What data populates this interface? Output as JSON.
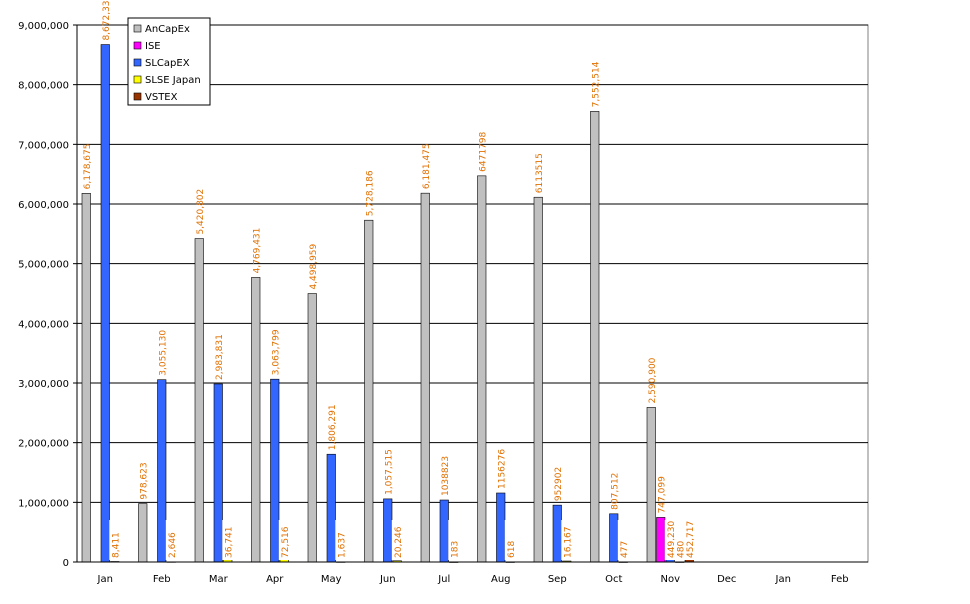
{
  "chart_data": {
    "type": "bar",
    "categories": [
      "Jan",
      "Feb",
      "Mar",
      "Apr",
      "May",
      "Jun",
      "Jul",
      "Aug",
      "Sep",
      "Oct",
      "Nov",
      "Dec",
      "Jan",
      "Feb"
    ],
    "ylim": [
      0,
      9000000
    ],
    "yticks": [
      {
        "value": 0,
        "label": "0"
      },
      {
        "value": 1000000,
        "label": "1,000,000"
      },
      {
        "value": 2000000,
        "label": "2,000,000"
      },
      {
        "value": 3000000,
        "label": "3,000,000"
      },
      {
        "value": 4000000,
        "label": "4,000,000"
      },
      {
        "value": 5000000,
        "label": "5,000,000"
      },
      {
        "value": 6000000,
        "label": "6,000,000"
      },
      {
        "value": 7000000,
        "label": "7,000,000"
      },
      {
        "value": 8000000,
        "label": "8,000,000"
      },
      {
        "value": 9000000,
        "label": "9,000,000"
      }
    ],
    "grid": true,
    "series": [
      {
        "name": "AnCapEx",
        "color": "#c0c0c0",
        "values": [
          6178675,
          978623,
          5420802,
          4769431,
          4498959,
          5728186,
          6181475,
          6471798,
          6113515,
          7552514,
          2590900,
          null,
          null,
          null
        ],
        "value_labels": [
          "6,178,675",
          "978,623",
          "5,420,802",
          "4,769,431",
          "4,498,959",
          "5,728,186",
          "6,181,475",
          "6471798",
          "6113515",
          "7,552,514",
          "2,590,900",
          null,
          null,
          null
        ]
      },
      {
        "name": "ISE",
        "color": "#ff00ff",
        "values": [
          null,
          null,
          null,
          null,
          null,
          null,
          null,
          null,
          null,
          null,
          747099,
          null,
          null,
          null
        ],
        "value_labels": [
          null,
          null,
          null,
          null,
          null,
          null,
          null,
          null,
          null,
          null,
          "747,099",
          null,
          null,
          null
        ]
      },
      {
        "name": "SLCapEX",
        "color": "#3366ff",
        "values": [
          8672335,
          3055130,
          2983831,
          3063799,
          1806291,
          1057515,
          1038823,
          1156276,
          952902,
          807512,
          449230,
          null,
          null,
          null
        ],
        "value_labels": [
          "8,672,335",
          "3,055,130",
          "2,983,831",
          "3,063,799",
          "1,806,291",
          "1,057,515",
          "1038823",
          "1156276",
          "952902",
          "807,512",
          "449,230",
          null,
          null,
          null
        ]
      },
      {
        "name": "SLSE Japan",
        "color": "#ffff00",
        "values": [
          8411,
          2646,
          36741,
          72516,
          1637,
          20246,
          183,
          618,
          16167,
          477,
          480,
          null,
          null,
          null
        ],
        "value_labels": [
          "8,411",
          "2,646",
          "36,741",
          "72,516",
          "1,637",
          "20,246",
          "183",
          "618",
          "16,167",
          "477",
          "480",
          null,
          null,
          null
        ]
      },
      {
        "name": "VSTEX",
        "color": "#993300",
        "values": [
          null,
          null,
          null,
          null,
          null,
          null,
          null,
          null,
          null,
          null,
          452717,
          null,
          null,
          null
        ],
        "value_labels": [
          null,
          null,
          null,
          null,
          null,
          null,
          null,
          null,
          null,
          null,
          "452,717",
          null,
          null,
          null
        ]
      }
    ]
  }
}
